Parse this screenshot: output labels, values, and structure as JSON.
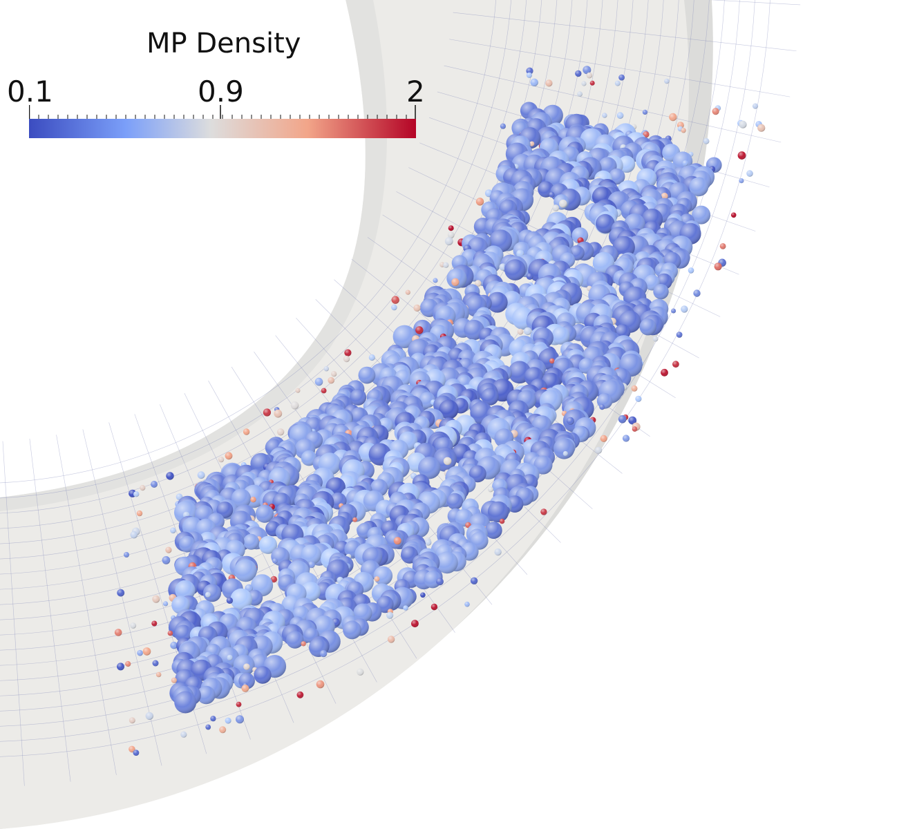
{
  "scene": {
    "background_color": "#ffffff",
    "domain_color": "#ecebe8",
    "domain_shade_color": "#dcdcda",
    "mesh_color": "#7f86b8"
  },
  "colorbar": {
    "title": "MP Density",
    "min_label": "0.1",
    "mid_label": "0.9",
    "max_label": "2",
    "range": [
      0.1,
      2
    ],
    "colormap": [
      "#3b4cc0",
      "#aac7fd",
      "#dddddd",
      "#f2a589",
      "#b40426"
    ]
  }
}
